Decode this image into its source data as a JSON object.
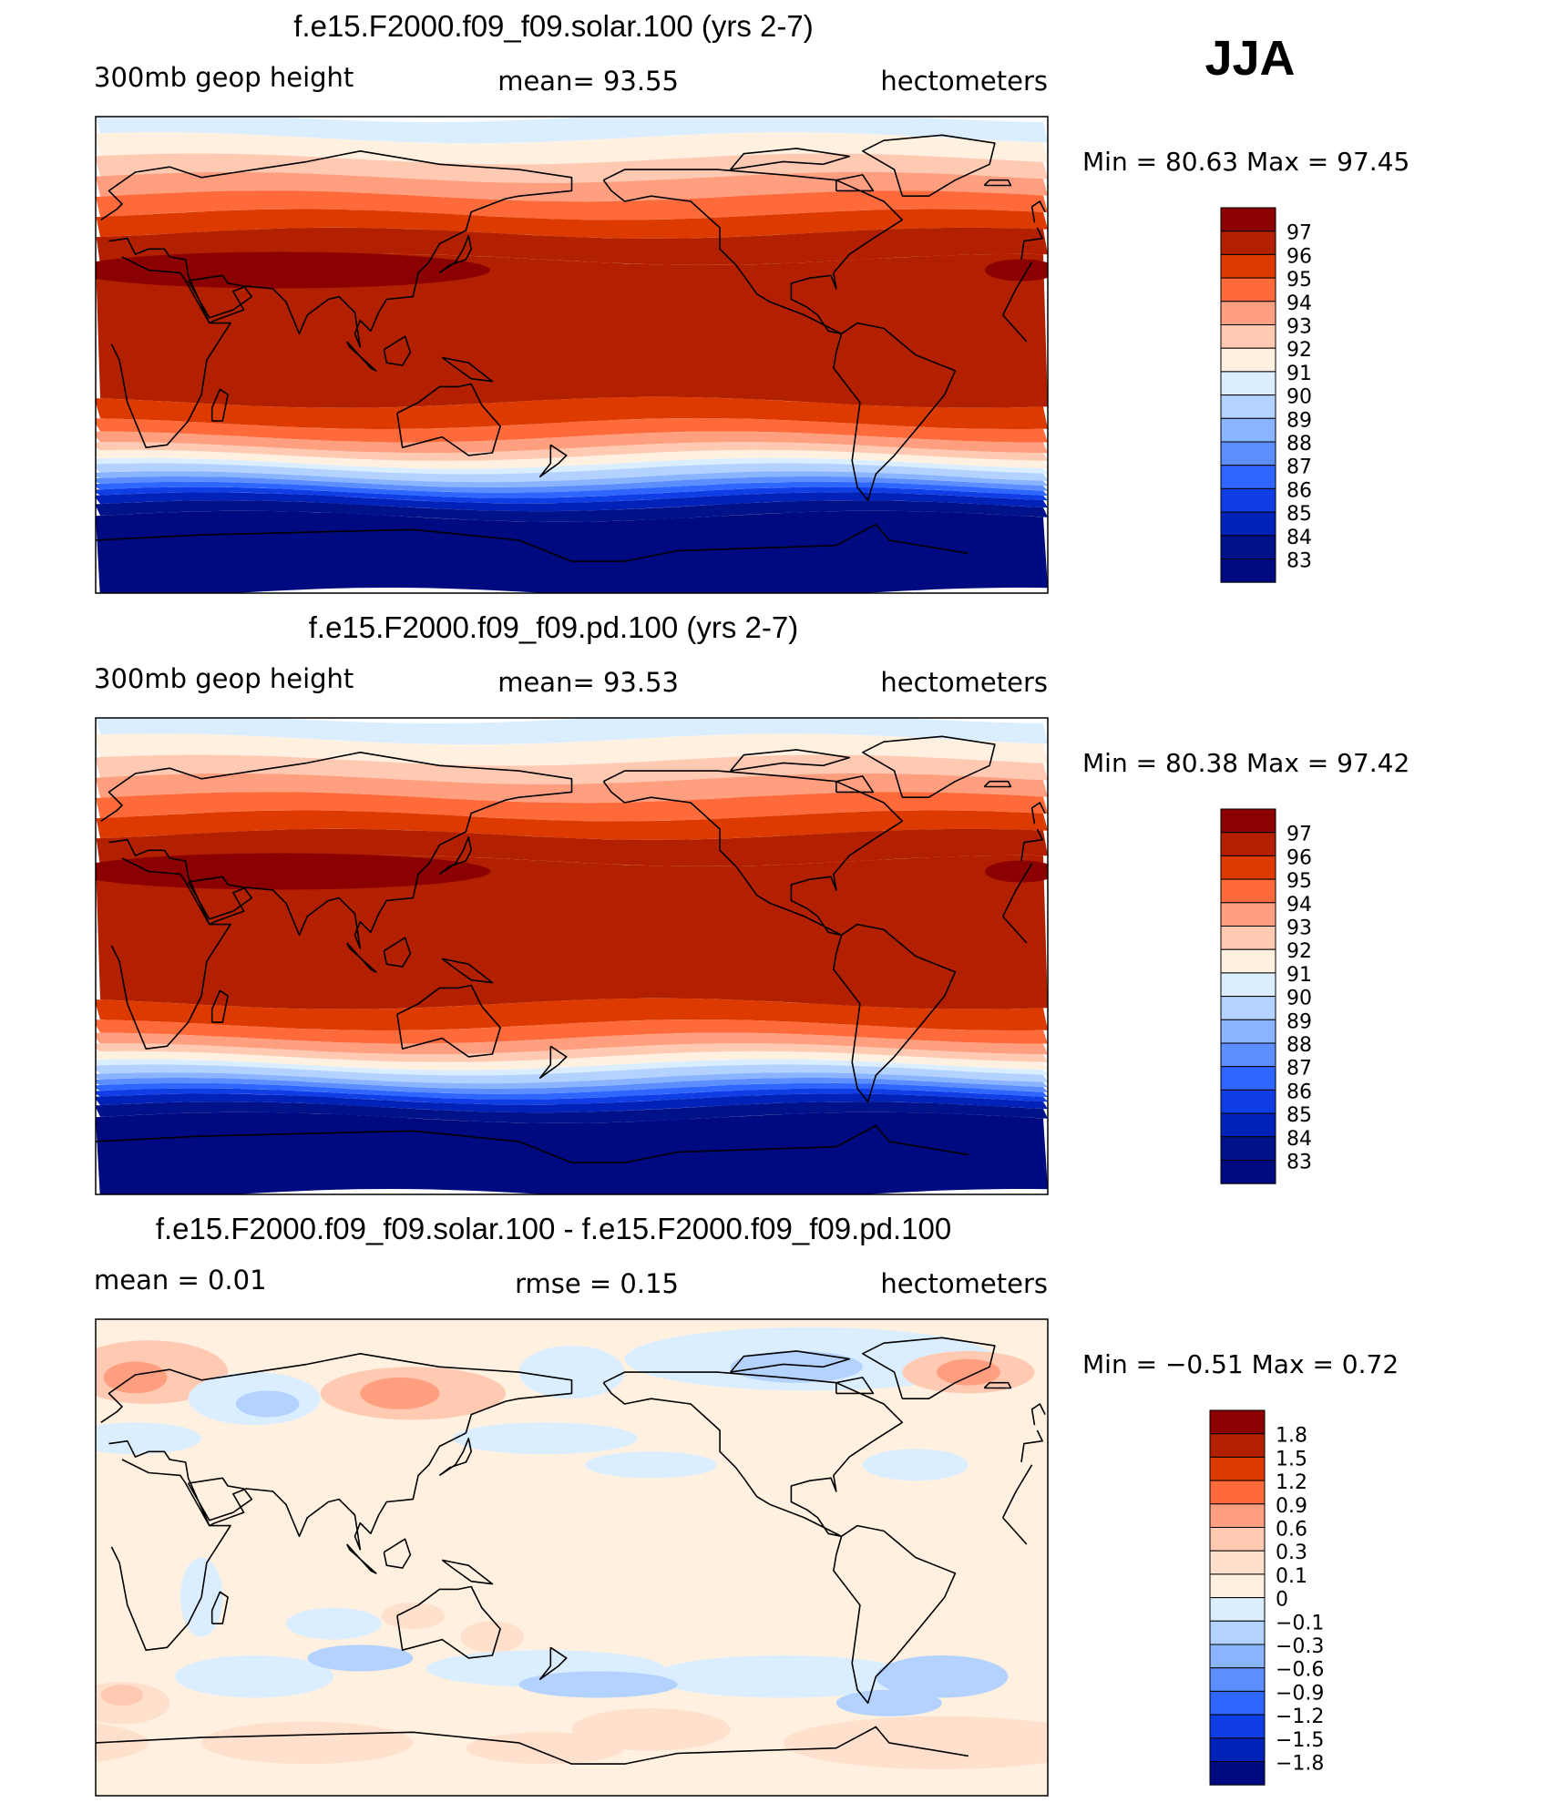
{
  "season": "JJA",
  "panels": [
    {
      "id": "solar",
      "title": "f.e15.F2000.f09_f09.solar.100 (yrs 2-7)",
      "left_label": "300mb  geop  height",
      "center_label": "mean=   93.55",
      "units": "hectometers",
      "minmax_label": "Min  =   80.63  Max  =   97.45",
      "field": "abs",
      "colorbar_labels": [
        "97",
        "96",
        "95",
        "94",
        "93",
        "92",
        "91",
        "90",
        "89",
        "88",
        "87",
        "86",
        "85",
        "84",
        "83"
      ]
    },
    {
      "id": "pd",
      "title": "f.e15.F2000.f09_f09.pd.100 (yrs 2-7)",
      "left_label": "300mb  geop  height",
      "center_label": "mean=   93.53",
      "units": "hectometers",
      "minmax_label": "Min  =   80.38  Max  =   97.42",
      "field": "abs",
      "colorbar_labels": [
        "97",
        "96",
        "95",
        "94",
        "93",
        "92",
        "91",
        "90",
        "89",
        "88",
        "87",
        "86",
        "85",
        "84",
        "83"
      ]
    },
    {
      "id": "diff",
      "title": "f.e15.F2000.f09_f09.solar.100 - f.e15.F2000.f09_f09.pd.100",
      "left_label": "mean  =     0.01",
      "center_label": "rmse  =     0.15",
      "units": "hectometers",
      "minmax_label": "Min  =   −0.51  Max  =     0.72",
      "field": "diff",
      "colorbar_labels": [
        "1.8",
        "1.5",
        "1.2",
        "0.9",
        "0.6",
        "0.3",
        "0.1",
        "0",
        "−0.1",
        "−0.3",
        "−0.6",
        "−0.9",
        "−1.2",
        "−1.5",
        "−1.8"
      ]
    }
  ],
  "colors": {
    "abs_scale": [
      "#8b0000",
      "#b22000",
      "#dd3a00",
      "#ff6a3a",
      "#ff9f80",
      "#ffc9b2",
      "#fff0e0",
      "#dbeeff",
      "#b4d2ff",
      "#8ab4ff",
      "#5c8eff",
      "#2e66ff",
      "#0f3ee6",
      "#0022b8",
      "#00128a",
      "#000a80"
    ],
    "diff_scale": [
      "#8b0000",
      "#b22000",
      "#dd3a00",
      "#ff6a3a",
      "#ff9f80",
      "#ffc9b2",
      "#ffe0cc",
      "#fff0e0",
      "#dbeeff",
      "#b4d2ff",
      "#8ab4ff",
      "#5c8eff",
      "#2e66ff",
      "#0f3ee6",
      "#0022b8",
      "#000a80"
    ]
  }
}
